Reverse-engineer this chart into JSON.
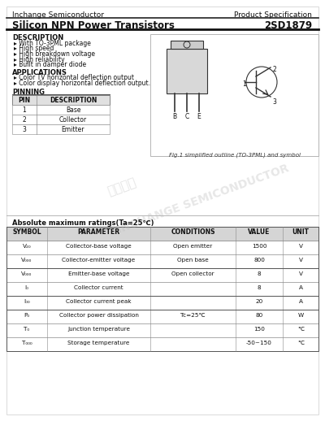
{
  "company": "Inchange Semiconductor",
  "spec_label": "Product Specification",
  "title": "Silicon NPN Power Transistors",
  "part_number": "2SD1879",
  "description_title": "DESCRIPTION",
  "description_items": [
    "With TO-3PML package",
    "High speed",
    "High breakdown voltage",
    "High reliability",
    "Built in damper diode"
  ],
  "applications_title": "APPLICATIONS",
  "applications_items": [
    "Color TV horizontal deflection output",
    "Color display horizontal deflection output."
  ],
  "pinning_title": "PINNING",
  "pin_headers": [
    "PIN",
    "DESCRIPTION"
  ],
  "pins": [
    [
      "1",
      "Base"
    ],
    [
      "2",
      "Collector"
    ],
    [
      "3",
      "Emitter"
    ]
  ],
  "fig_caption": "Fig.1 simplified outline (TO-3PML) and symbol",
  "watermark": "INCHANGE SEMICONDUCTOR",
  "watermark2": "光山尴体",
  "ratings_title": "Absolute maximum ratings(Ta=25℃)",
  "ratings_headers": [
    "SYMBOL",
    "PARAMETER",
    "CONDITIONS",
    "VALUE",
    "UNIT"
  ],
  "symbol_texts": [
    "V₂₀",
    "V₀₀₀",
    "V₀₀₀",
    "I₀",
    "I₀₀",
    "P₀",
    "T₀",
    "T₀₀₀"
  ],
  "parameters": [
    "Collector-base voltage",
    "Collector-emitter voltage",
    "Emitter-base voltage",
    "Collector current",
    "Collector current peak",
    "Collector power dissipation",
    "Junction temperature",
    "Storage temperature"
  ],
  "conditions": [
    "Open emitter",
    "Open base",
    "Open collector",
    "",
    "",
    "Tc=25℃",
    "",
    ""
  ],
  "values": [
    "1500",
    "800",
    "8",
    "8",
    "20",
    "80",
    "150",
    "-50~150"
  ],
  "units": [
    "V",
    "V",
    "V",
    "A",
    "A",
    "W",
    "℃",
    "℃"
  ],
  "bg_color": "#ffffff"
}
